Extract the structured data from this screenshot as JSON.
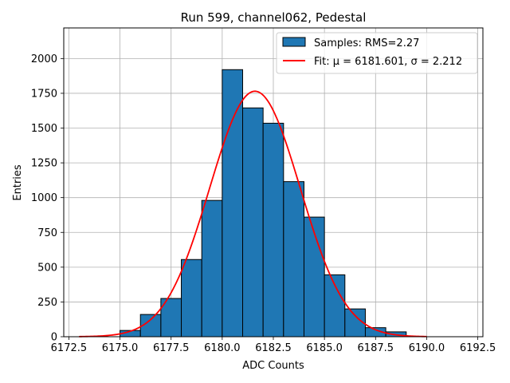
{
  "chart_data": {
    "type": "bar",
    "title": "Run 599, channel062, Pedestal",
    "xlabel": "ADC Counts",
    "ylabel": "Entries",
    "xlim": [
      6172.25,
      6192.75
    ],
    "ylim": [
      0,
      2220
    ],
    "grid": true,
    "legend_placement": "top-right",
    "xticks": [
      6172.5,
      6175.0,
      6177.5,
      6180.0,
      6182.5,
      6185.0,
      6187.5,
      6190.0,
      6192.5
    ],
    "xtick_labels": [
      "6172.5",
      "6175.0",
      "6177.5",
      "6180.0",
      "6182.5",
      "6185.0",
      "6187.5",
      "6190.0",
      "6192.5"
    ],
    "yticks": [
      0,
      250,
      500,
      750,
      1000,
      1250,
      1500,
      1750,
      2000
    ],
    "ytick_labels": [
      "0",
      "250",
      "500",
      "750",
      "1000",
      "1250",
      "1500",
      "1750",
      "2000"
    ],
    "histogram": {
      "name": "Samples: RMS=2.27",
      "color": "#1f77b4",
      "edge_color": "#000000",
      "bins": [
        {
          "x0": 6175,
          "x1": 6176,
          "value": 45
        },
        {
          "x0": 6176,
          "x1": 6177,
          "value": 160
        },
        {
          "x0": 6177,
          "x1": 6178,
          "value": 275
        },
        {
          "x0": 6178,
          "x1": 6179,
          "value": 555
        },
        {
          "x0": 6179,
          "x1": 6180,
          "value": 980
        },
        {
          "x0": 6180,
          "x1": 6181,
          "value": 1920
        },
        {
          "x0": 6181,
          "x1": 6182,
          "value": 1645
        },
        {
          "x0": 6182,
          "x1": 6183,
          "value": 1535
        },
        {
          "x0": 6183,
          "x1": 6184,
          "value": 1115
        },
        {
          "x0": 6184,
          "x1": 6185,
          "value": 860
        },
        {
          "x0": 6185,
          "x1": 6186,
          "value": 445
        },
        {
          "x0": 6186,
          "x1": 6187,
          "value": 200
        },
        {
          "x0": 6187,
          "x1": 6188,
          "value": 65
        },
        {
          "x0": 6188,
          "x1": 6189,
          "value": 35
        }
      ]
    },
    "fit": {
      "name": "Fit: μ = 6181.601, σ = 2.212",
      "color": "#ff0000",
      "mu": 6181.601,
      "sigma": 2.212,
      "amplitude": 1765,
      "x_range": [
        6173,
        6190
      ]
    }
  }
}
